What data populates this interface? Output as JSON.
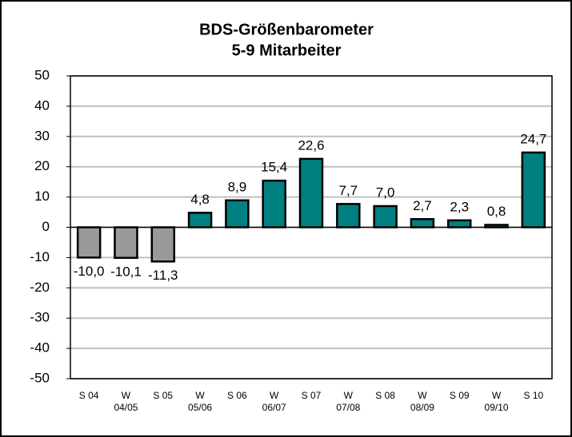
{
  "chart_data": {
    "type": "bar",
    "title": "BDS-Größenbarometer",
    "subtitle": "5-9 Mitarbeiter",
    "categories": [
      "S 04",
      "W\n04/05",
      "S 05",
      "W\n05/06",
      "S 06",
      "W\n06/07",
      "S 07",
      "W\n07/08",
      "S 08",
      "W\n08/09",
      "S 09",
      "W\n09/10",
      "S 10"
    ],
    "values": [
      -10.0,
      -10.1,
      -11.3,
      4.8,
      8.9,
      15.4,
      22.6,
      7.7,
      7.0,
      2.7,
      2.3,
      0.8,
      24.7
    ],
    "value_labels": [
      "-10,0",
      "-10,1",
      "-11,3",
      "4,8",
      "8,9",
      "15,4",
      "22,6",
      "7,7",
      "7,0",
      "2,7",
      "2,3",
      "0,8",
      "24,7"
    ],
    "colors": [
      "#999999",
      "#999999",
      "#999999",
      "#008080",
      "#008080",
      "#008080",
      "#008080",
      "#008080",
      "#008080",
      "#008080",
      "#008080",
      "#008080",
      "#008080"
    ],
    "ylim": [
      -50,
      50
    ],
    "yticks": [
      -50,
      -40,
      -30,
      -20,
      -10,
      0,
      10,
      20,
      30,
      40,
      50
    ],
    "grid": true
  }
}
